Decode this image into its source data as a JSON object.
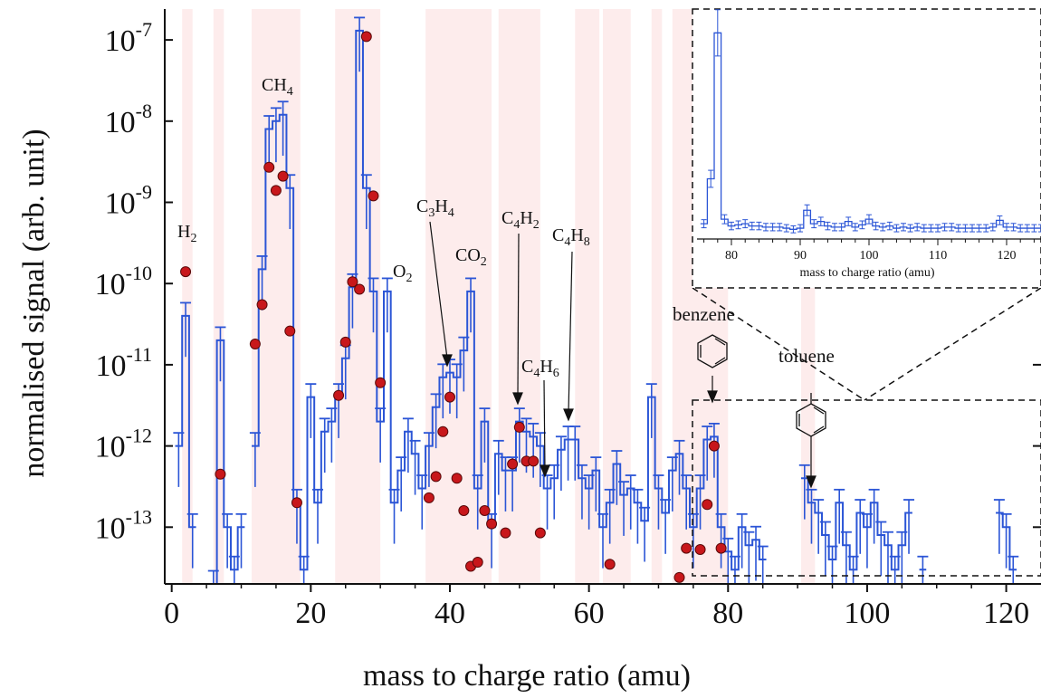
{
  "chart_data": {
    "type": "line",
    "xlabel": "mass to charge ratio (amu)",
    "ylabel": "normalised signal (arb. unit)",
    "xlim": [
      -1,
      125
    ],
    "ylim": [
      2e-14,
      2.4e-07
    ],
    "yscale": "log",
    "x_ticks": [
      "0",
      "20",
      "40",
      "60",
      "80",
      "100",
      "120"
    ],
    "y_ticks": [
      {
        "value": 1e-13,
        "base": "10",
        "exp": "-13"
      },
      {
        "value": 1e-12,
        "base": "10",
        "exp": "-12"
      },
      {
        "value": 1e-11,
        "base": "10",
        "exp": "-11"
      },
      {
        "value": 1e-10,
        "base": "10",
        "exp": "-10"
      },
      {
        "value": 1e-09,
        "base": "10",
        "exp": "-9"
      },
      {
        "value": 1e-08,
        "base": "10",
        "exp": "-8"
      },
      {
        "value": 1e-07,
        "base": "10",
        "exp": "-7"
      }
    ],
    "colors": {
      "step": "#2b55d6",
      "marker": "#c8171b",
      "marker_edge": "#5a0a0a",
      "band": "#fdecec",
      "axis": "#111111"
    },
    "bands": [
      [
        1.5,
        3
      ],
      [
        6,
        7.5
      ],
      [
        11.5,
        18.5
      ],
      [
        23.5,
        30
      ],
      [
        36.5,
        46
      ],
      [
        47,
        53
      ],
      [
        58,
        61.5
      ],
      [
        62,
        66
      ],
      [
        69,
        70.5
      ],
      [
        72,
        80
      ],
      [
        90.5,
        92.5
      ]
    ],
    "step_series": {
      "x": [
        1,
        2,
        3,
        4,
        5,
        6,
        7,
        8,
        9,
        10,
        11,
        12,
        13,
        14,
        15,
        16,
        17,
        18,
        19,
        20,
        21,
        22,
        23,
        24,
        25,
        26,
        27,
        28,
        29,
        30,
        31,
        32,
        33,
        34,
        35,
        36,
        37,
        38,
        39,
        40,
        41,
        42,
        43,
        44,
        45,
        46,
        47,
        48,
        49,
        50,
        51,
        52,
        53,
        54,
        55,
        56,
        57,
        58,
        59,
        60,
        61,
        62,
        63,
        64,
        65,
        66,
        67,
        68,
        69,
        70,
        71,
        72,
        73,
        74,
        75,
        76,
        77,
        78,
        79,
        80,
        81,
        82,
        83,
        84,
        85,
        86,
        87,
        88,
        89,
        90,
        91,
        92,
        93,
        94,
        95,
        96,
        97,
        98,
        99,
        100,
        101,
        102,
        103,
        104,
        105,
        106,
        107,
        108,
        109,
        110,
        111,
        112,
        113,
        114,
        115,
        116,
        117,
        118,
        119,
        120,
        121
      ],
      "y": [
        1e-12,
        4e-11,
        1e-13,
        null,
        null,
        2e-14,
        2e-11,
        1e-13,
        3e-14,
        1e-13,
        null,
        1e-12,
        1.5e-10,
        8e-09,
        1e-08,
        1.2e-08,
        1.5e-09,
        2e-13,
        3e-14,
        4e-12,
        2e-13,
        1.5e-12,
        2e-12,
        4e-12,
        1.2e-11,
        9e-11,
        1.3e-07,
        1.5e-09,
        8e-11,
        2e-12,
        8e-11,
        2e-13,
        5e-13,
        1.5e-12,
        8e-13,
        3e-13,
        1e-12,
        3e-12,
        7e-12,
        8e-12,
        7e-12,
        1.5e-11,
        8e-11,
        3e-13,
        2e-12,
        1e-13,
        8e-13,
        5e-13,
        5e-13,
        2e-12,
        1.5e-12,
        1.3e-12,
        1e-12,
        3e-13,
        4e-13,
        9e-13,
        1.2e-12,
        1.2e-12,
        4e-13,
        3e-13,
        5e-13,
        1e-13,
        2e-13,
        6e-13,
        2.5e-13,
        3e-13,
        2e-13,
        1.2e-13,
        4e-12,
        3e-13,
        1.5e-13,
        5e-13,
        8e-13,
        3e-13,
        1e-13,
        3e-13,
        1.2e-12,
        1.3e-12,
        1e-13,
        5e-14,
        3e-14,
        1e-13,
        6e-14,
        7e-14,
        4e-14,
        null,
        null,
        null,
        null,
        null,
        4e-13,
        2e-13,
        1.5e-13,
        8e-14,
        4e-14,
        2e-13,
        6e-14,
        3e-14,
        1.5e-13,
        1e-13,
        2e-13,
        8e-14,
        6e-14,
        3e-14,
        6e-14,
        1.5e-13,
        null,
        3e-14,
        null,
        null,
        null,
        null,
        null,
        null,
        null,
        null,
        null,
        null,
        1.5e-13,
        1e-13,
        3e-14
      ]
    },
    "marker_series": {
      "x": [
        2,
        7,
        12,
        13,
        14,
        15,
        16,
        17,
        18,
        24,
        25,
        26,
        27,
        28,
        29,
        30,
        37,
        38,
        39,
        40,
        41,
        42,
        43,
        44,
        45,
        46,
        48,
        49,
        50,
        51,
        52,
        53,
        63,
        73,
        74,
        76,
        77,
        78,
        79
      ],
      "y": [
        1.4e-10,
        4.5e-13,
        1.8e-11,
        5.5e-11,
        2.7e-09,
        1.4e-09,
        2.1e-09,
        2.6e-11,
        2e-13,
        4.2e-12,
        1.9e-11,
        1.05e-10,
        8.5e-11,
        1.1e-07,
        1.2e-09,
        6e-12,
        2.3e-13,
        4.2e-13,
        1.5e-12,
        4e-12,
        4e-13,
        1.6e-13,
        3.3e-14,
        3.7e-14,
        1.6e-13,
        1.1e-13,
        8.5e-14,
        6e-13,
        1.7e-12,
        6.5e-13,
        6.5e-13,
        8.5e-14,
        3.5e-14,
        2.4e-14,
        5.5e-14,
        5.3e-14,
        1.9e-13,
        1e-12,
        5.5e-14
      ]
    },
    "annotations": [
      {
        "label": "H",
        "sub": "2"
      },
      {
        "label": "CH",
        "sub": "4"
      },
      {
        "label": "O",
        "sub": "2"
      },
      {
        "label": "C3H4",
        "parts": [
          "C",
          "3",
          "H",
          "4"
        ]
      },
      {
        "label": "CO",
        "sub": "2"
      },
      {
        "label": "C4H2",
        "parts": [
          "C",
          "4",
          "H",
          "2"
        ]
      },
      {
        "label": "C4H8",
        "parts": [
          "C",
          "4",
          "H",
          "8"
        ]
      },
      {
        "label": "C4H6",
        "parts": [
          "C",
          "4",
          "H",
          "6"
        ]
      },
      {
        "label": "benzene"
      },
      {
        "label": "toluene"
      }
    ],
    "inset": {
      "xlabel": "mass to charge ratio (amu)",
      "xlim": [
        75,
        125
      ],
      "x_ticks": [
        "80",
        "90",
        "100",
        "110",
        "120"
      ],
      "yscale": "linear",
      "x": [
        76,
        77,
        78,
        79,
        80,
        81,
        82,
        83,
        84,
        85,
        86,
        87,
        88,
        89,
        90,
        91,
        92,
        93,
        94,
        95,
        96,
        97,
        98,
        99,
        100,
        101,
        102,
        103,
        104,
        105,
        106,
        107,
        108,
        109,
        110,
        111,
        112,
        113,
        114,
        115,
        116,
        117,
        118,
        119,
        120,
        121,
        122,
        123,
        124,
        125
      ],
      "y": [
        0.06,
        0.26,
        0.91,
        0.08,
        0.05,
        0.055,
        0.06,
        0.05,
        0.05,
        0.045,
        0.045,
        0.045,
        0.04,
        0.035,
        0.04,
        0.12,
        0.06,
        0.07,
        0.05,
        0.045,
        0.045,
        0.07,
        0.045,
        0.055,
        0.08,
        0.05,
        0.045,
        0.05,
        0.04,
        0.045,
        0.04,
        0.045,
        0.04,
        0.04,
        0.04,
        0.045,
        0.045,
        0.04,
        0.04,
        0.04,
        0.04,
        0.04,
        0.045,
        0.075,
        0.045,
        0.045,
        0.04,
        0.04,
        0.04,
        0.04
      ]
    }
  }
}
